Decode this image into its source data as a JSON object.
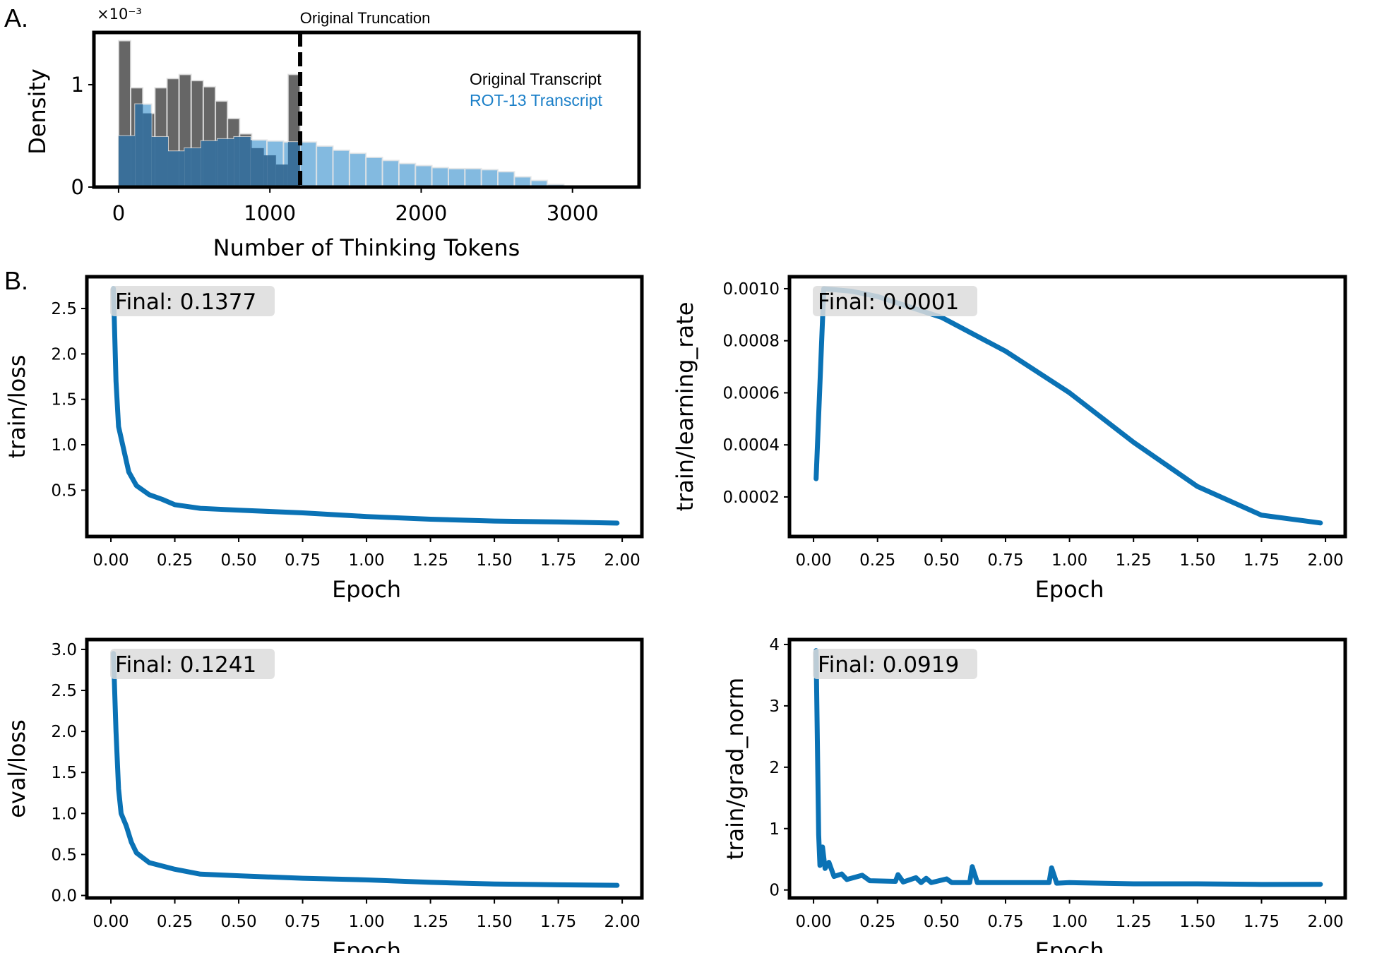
{
  "panel_labels": {
    "a": "A.",
    "b": "B."
  },
  "colors": {
    "original": "#666666",
    "rot13": "#5aa3d6",
    "rot13_dark_overlap": "#3a6f99",
    "line": "#0a72b5",
    "legend_rot13_text": "#1a7fc8",
    "final_box": "#dcdcdc"
  },
  "chart_data": [
    {
      "id": "histogram",
      "type": "bar",
      "title": "",
      "xlabel": "Number of Thinking Tokens",
      "ylabel": "Density",
      "y_multiplier_label": "×10⁻³",
      "xlim": [
        -163,
        3440
      ],
      "ylim": [
        0,
        1.51
      ],
      "xticks": [
        0,
        1000,
        2000,
        3000
      ],
      "yticks": [
        0,
        1
      ],
      "grid": false,
      "legend_placement": "right",
      "annotation": {
        "label": "Original Truncation",
        "x": 1200,
        "style": "dashed vertical line"
      },
      "series": [
        {
          "name": "Original Transcript",
          "bin_start": 0,
          "bin_width": 80,
          "values": [
            1.43,
            0.97,
            0.72,
            0.97,
            1.06,
            1.1,
            1.04,
            0.98,
            0.84,
            0.67,
            0.52,
            0.38,
            0.31,
            0.22,
            1.1
          ]
        },
        {
          "name": "ROT-13 Transcript",
          "bin_start": 0,
          "bin_width": 109,
          "values": [
            0.5,
            0.81,
            0.49,
            0.35,
            0.38,
            0.45,
            0.47,
            0.49,
            0.46,
            0.45,
            0.44,
            0.44,
            0.4,
            0.36,
            0.33,
            0.29,
            0.26,
            0.23,
            0.21,
            0.19,
            0.18,
            0.18,
            0.17,
            0.15,
            0.1,
            0.065,
            0.026
          ]
        }
      ]
    },
    {
      "id": "train_loss",
      "type": "line",
      "xlabel": "Epoch",
      "ylabel": "train/loss",
      "final_label": "Final: 0.1377",
      "xlim": [
        -0.094,
        2.077
      ],
      "ylim": [
        -0.01,
        2.85
      ],
      "xticks": [
        "0.00",
        "0.25",
        "0.50",
        "0.75",
        "1.00",
        "1.25",
        "1.50",
        "1.75",
        "2.00"
      ],
      "yticks": [
        "0.5",
        "1.0",
        "1.5",
        "2.0",
        "2.5"
      ],
      "x": [
        0.01,
        0.02,
        0.03,
        0.05,
        0.07,
        0.1,
        0.15,
        0.2,
        0.25,
        0.35,
        0.5,
        0.75,
        1.0,
        1.25,
        1.5,
        1.75,
        1.98
      ],
      "y": [
        2.72,
        1.7,
        1.2,
        0.95,
        0.7,
        0.55,
        0.45,
        0.4,
        0.34,
        0.3,
        0.28,
        0.25,
        0.21,
        0.18,
        0.16,
        0.15,
        0.1377
      ]
    },
    {
      "id": "learning_rate",
      "type": "line",
      "xlabel": "Epoch",
      "ylabel": "train/learning_rate",
      "final_label": "Final: 0.0001",
      "xlim": [
        -0.094,
        2.077
      ],
      "ylim": [
        4.8e-05,
        0.001046
      ],
      "xticks": [
        "0.00",
        "0.25",
        "0.50",
        "0.75",
        "1.00",
        "1.25",
        "1.50",
        "1.75",
        "2.00"
      ],
      "yticks": [
        "0.0002",
        "0.0004",
        "0.0006",
        "0.0008",
        "0.0010"
      ],
      "x": [
        0.01,
        0.04,
        0.15,
        0.25,
        0.5,
        0.75,
        1.0,
        1.25,
        1.5,
        1.75,
        1.98
      ],
      "y": [
        0.00027,
        0.001,
        0.00099,
        0.00097,
        0.00089,
        0.00076,
        0.0006,
        0.00041,
        0.00024,
        0.00013,
        0.0001
      ]
    },
    {
      "id": "eval_loss",
      "type": "line",
      "xlabel": "Epoch",
      "ylabel": "eval/loss",
      "final_label": "Final: 0.1241",
      "xlim": [
        -0.094,
        2.077
      ],
      "ylim": [
        -0.03,
        3.12
      ],
      "xticks": [
        "0.00",
        "0.25",
        "0.50",
        "0.75",
        "1.00",
        "1.25",
        "1.50",
        "1.75",
        "2.00"
      ],
      "yticks": [
        "0.0",
        "0.5",
        "1.0",
        "1.5",
        "2.0",
        "2.5",
        "3.0"
      ],
      "x": [
        0.01,
        0.02,
        0.03,
        0.04,
        0.06,
        0.08,
        0.1,
        0.15,
        0.25,
        0.35,
        0.5,
        0.75,
        1.0,
        1.25,
        1.5,
        1.75,
        1.98
      ],
      "y": [
        2.95,
        2.0,
        1.3,
        1.0,
        0.85,
        0.65,
        0.52,
        0.4,
        0.32,
        0.26,
        0.24,
        0.21,
        0.19,
        0.16,
        0.14,
        0.13,
        0.1241
      ]
    },
    {
      "id": "grad_norm",
      "type": "line",
      "xlabel": "Epoch",
      "ylabel": "train/grad_norm",
      "final_label": "Final: 0.0919",
      "xlim": [
        -0.094,
        2.077
      ],
      "ylim": [
        -0.13,
        4.08
      ],
      "xticks": [
        "0.00",
        "0.25",
        "0.50",
        "0.75",
        "1.00",
        "1.25",
        "1.50",
        "1.75",
        "2.00"
      ],
      "yticks": [
        "0",
        "1",
        "2",
        "3",
        "4"
      ],
      "x": [
        0.01,
        0.02,
        0.025,
        0.035,
        0.045,
        0.06,
        0.08,
        0.11,
        0.13,
        0.19,
        0.22,
        0.32,
        0.33,
        0.35,
        0.4,
        0.42,
        0.44,
        0.46,
        0.52,
        0.54,
        0.61,
        0.62,
        0.64,
        0.92,
        0.93,
        0.95,
        1.0,
        1.25,
        1.5,
        1.75,
        1.98
      ],
      "y": [
        3.9,
        0.9,
        0.4,
        0.7,
        0.35,
        0.45,
        0.22,
        0.26,
        0.17,
        0.24,
        0.15,
        0.14,
        0.25,
        0.13,
        0.2,
        0.12,
        0.19,
        0.12,
        0.18,
        0.12,
        0.12,
        0.38,
        0.12,
        0.12,
        0.36,
        0.11,
        0.12,
        0.1,
        0.1,
        0.09,
        0.0919
      ]
    }
  ]
}
